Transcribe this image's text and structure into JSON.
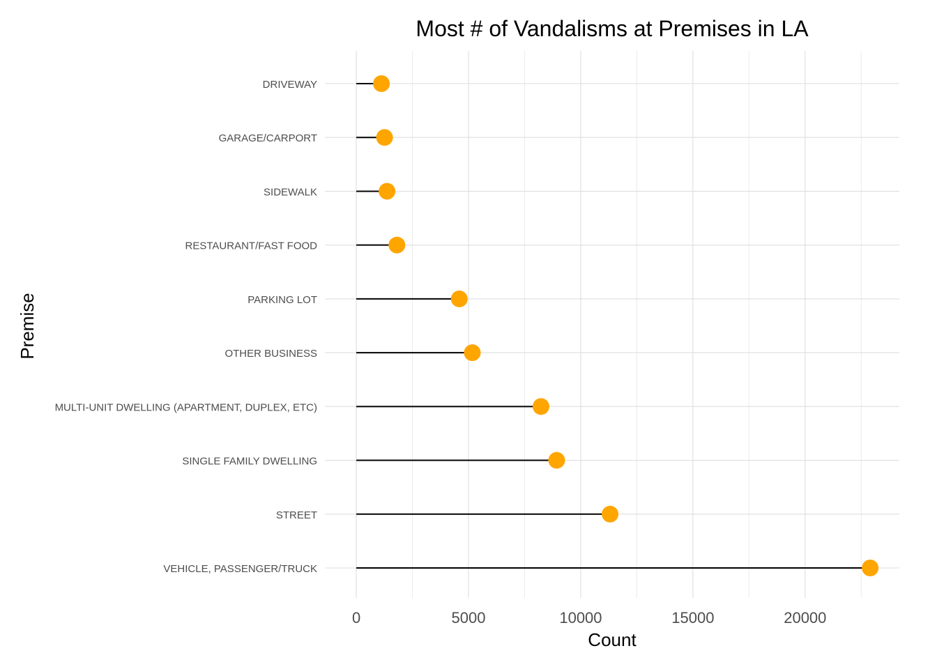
{
  "chart_data": {
    "type": "lollipop",
    "title": "Most # of Vandalisms at Premises in LA",
    "xlabel": "Count",
    "ylabel": "Premise",
    "xlim": [
      -1400,
      24200
    ],
    "xticks": [
      0,
      5000,
      10000,
      15000,
      20000
    ],
    "xtick_labels": [
      "0",
      "5000",
      "10000",
      "15000",
      "20000"
    ],
    "grid": true,
    "point_color": "#FFA500",
    "stem_color": "#000000",
    "categories": [
      "DRIVEWAY",
      "GARAGE/CARPORT",
      "SIDEWALK",
      "RESTAURANT/FAST FOOD",
      "PARKING LOT",
      "OTHER BUSINESS",
      "MULTI-UNIT DWELLING (APARTMENT, DUPLEX, ETC)",
      "SINGLE FAMILY DWELLING",
      "STREET",
      "VEHICLE, PASSENGER/TRUCK"
    ],
    "values": [
      1120,
      1260,
      1370,
      1810,
      4590,
      5170,
      8230,
      8930,
      11310,
      22900
    ]
  }
}
